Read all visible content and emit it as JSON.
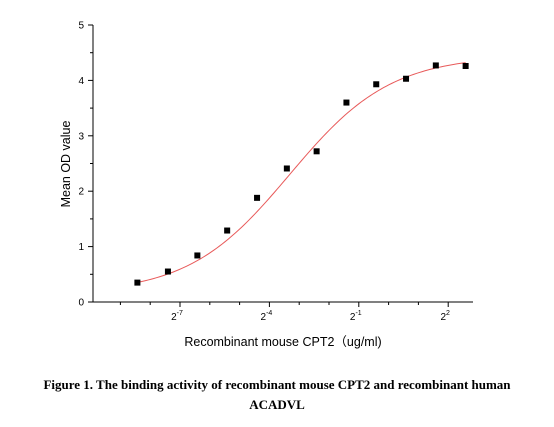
{
  "chart_data": {
    "type": "scatter",
    "xlabel": "Recombinant mouse CPT2（ug/ml)",
    "ylabel": "Mean OD value",
    "x_scale": "log2",
    "ylim": [
      0,
      5
    ],
    "y_ticks": [
      "0",
      "1",
      "2",
      "3",
      "4",
      "5"
    ],
    "x_tick_labels": [
      {
        "base": "2",
        "exp": "-7",
        "value": 0.0078125
      },
      {
        "base": "2",
        "exp": "-4",
        "value": 0.0625
      },
      {
        "base": "2",
        "exp": "-1",
        "value": 0.5
      },
      {
        "base": "2",
        "exp": "2",
        "value": 4
      }
    ],
    "series": [
      {
        "type": "scatter",
        "marker": "square",
        "color": "#000000",
        "x": [
          0.0029,
          0.0059,
          0.0117,
          0.0234,
          0.0469,
          0.0938,
          0.1875,
          0.375,
          0.75,
          1.5,
          3,
          6
        ],
        "y": [
          0.35,
          0.55,
          0.84,
          1.29,
          1.88,
          2.41,
          2.72,
          3.6,
          3.93,
          4.03,
          4.27,
          4.26
        ]
      },
      {
        "type": "line",
        "color": "#e85a5a",
        "fit": "four-parameter logistic",
        "params": {
          "bottom": 0.15,
          "top": 4.45,
          "ec50": 0.1,
          "hill": 0.85
        }
      }
    ],
    "grid": false
  },
  "caption": {
    "line1": "Figure 1. The binding activity of recombinant mouse CPT2 and recombinant human",
    "line2": "ACADVL"
  }
}
